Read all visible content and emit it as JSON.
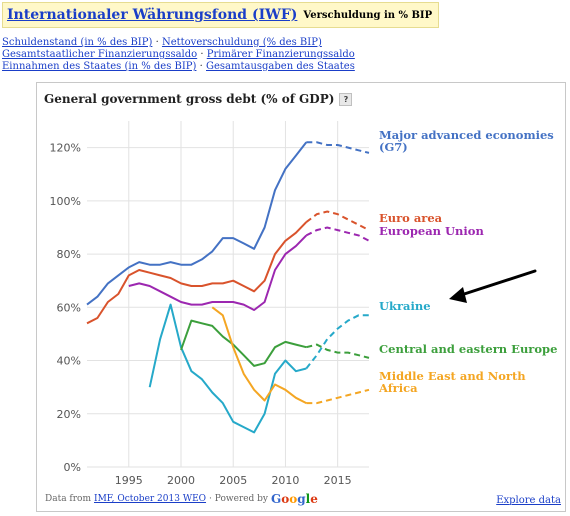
{
  "header": {
    "title": "Internationaler Währungsfond (IWF)",
    "subtitle": "Verschuldung in % BIP"
  },
  "links": {
    "row1": [
      "Schuldenstand (in % des BIP)",
      "Nettoverschuldung (% des BIP)"
    ],
    "row2": [
      "Gesamtstaatlicher Finanzierungssaldo",
      "Primärer Finanzierungssaldo"
    ],
    "row3": [
      "Einnahmen des Staates (in % des BIP)",
      "Gesamtausgaben des Staates"
    ],
    "separator": "·"
  },
  "chart_header": {
    "title": "General government gross debt (% of GDP)",
    "help": "?"
  },
  "footer": {
    "data_from": "Data from",
    "source_link": "IMF, October 2013 WEO",
    "powered_by": "· Powered by",
    "google_letters": [
      "G",
      "o",
      "o",
      "g",
      "l",
      "e"
    ],
    "explore": "Explore data"
  },
  "colors": {
    "g7": "#4472c4",
    "euro": "#d9532c",
    "eu": "#9c27b0",
    "ukraine": "#26a9c9",
    "cee": "#3c9f3c",
    "mena": "#f4a623",
    "grid": "#e2e2e2",
    "arrow": "#000000"
  },
  "chart_data": {
    "type": "line",
    "title": "General government gross debt (% of GDP)",
    "xlabel": "",
    "ylabel": "",
    "xlim": [
      1991,
      2018
    ],
    "ylim": [
      0,
      130
    ],
    "xticks": [
      1995,
      2000,
      2005,
      2010,
      2015
    ],
    "yticks": [
      0,
      20,
      40,
      60,
      80,
      100,
      120
    ],
    "ytick_labels": [
      "0%",
      "20%",
      "40%",
      "60%",
      "80%",
      "100%",
      "120%"
    ],
    "grid": true,
    "legend": "right, labels at line ends",
    "series": [
      {
        "name": "Major advanced economies (G7)",
        "label_lines": [
          "Major advanced economies",
          "(G7)"
        ],
        "color_key": "g7",
        "x": [
          1991,
          1992,
          1993,
          1994,
          1995,
          1996,
          1997,
          1998,
          1999,
          2000,
          2001,
          2002,
          2003,
          2004,
          2005,
          2006,
          2007,
          2008,
          2009,
          2010,
          2011,
          2012,
          2013,
          2014,
          2015,
          2016,
          2017,
          2018
        ],
        "y": [
          61,
          64,
          69,
          72,
          75,
          77,
          76,
          76,
          77,
          76,
          76,
          78,
          81,
          86,
          86,
          84,
          82,
          90,
          104,
          112,
          117,
          122,
          122,
          121,
          121,
          120,
          119,
          118
        ],
        "projection_from": 2012
      },
      {
        "name": "Euro area",
        "label_lines": [
          "Euro area"
        ],
        "color_key": "euro",
        "x": [
          1991,
          1992,
          1993,
          1994,
          1995,
          1996,
          1997,
          1998,
          1999,
          2000,
          2001,
          2002,
          2003,
          2004,
          2005,
          2006,
          2007,
          2008,
          2009,
          2010,
          2011,
          2012,
          2013,
          2014,
          2015,
          2016,
          2017,
          2018
        ],
        "y": [
          54,
          56,
          62,
          65,
          72,
          74,
          73,
          72,
          71,
          69,
          68,
          68,
          69,
          69,
          70,
          68,
          66,
          70,
          80,
          85,
          88,
          92,
          95,
          96,
          95,
          93,
          91,
          89
        ],
        "projection_from": 2012
      },
      {
        "name": "European Union",
        "label_lines": [
          "European Union"
        ],
        "color_key": "eu",
        "x": [
          1995,
          1996,
          1997,
          1998,
          1999,
          2000,
          2001,
          2002,
          2003,
          2004,
          2005,
          2006,
          2007,
          2008,
          2009,
          2010,
          2011,
          2012,
          2013,
          2014,
          2015,
          2016,
          2017,
          2018
        ],
        "y": [
          68,
          69,
          68,
          66,
          64,
          62,
          61,
          61,
          62,
          62,
          62,
          61,
          59,
          62,
          74,
          80,
          83,
          87,
          89,
          90,
          89,
          88,
          87,
          85
        ],
        "projection_from": 2012
      },
      {
        "name": "Ukraine",
        "label_lines": [
          "Ukraine"
        ],
        "color_key": "ukraine",
        "x": [
          1997,
          1998,
          1999,
          2000,
          2001,
          2002,
          2003,
          2004,
          2005,
          2006,
          2007,
          2008,
          2009,
          2010,
          2011,
          2012,
          2013,
          2014,
          2015,
          2016,
          2017,
          2018
        ],
        "y": [
          30,
          48,
          61,
          45,
          36,
          33,
          28,
          24,
          17,
          15,
          13,
          20,
          35,
          40,
          36,
          37,
          42,
          48,
          52,
          55,
          57,
          57
        ],
        "projection_from": 2012
      },
      {
        "name": "Central and eastern Europe",
        "label_lines": [
          "Central and eastern Europe"
        ],
        "color_key": "cee",
        "x": [
          2000,
          2001,
          2002,
          2003,
          2004,
          2005,
          2006,
          2007,
          2008,
          2009,
          2010,
          2011,
          2012,
          2013,
          2014,
          2015,
          2016,
          2017,
          2018
        ],
        "y": [
          44,
          55,
          54,
          53,
          49,
          46,
          42,
          38,
          39,
          45,
          47,
          46,
          45,
          46,
          44,
          43,
          43,
          42,
          41
        ],
        "projection_from": 2012
      },
      {
        "name": "Middle East and North Africa",
        "label_lines": [
          "Middle East and North",
          "Africa"
        ],
        "color_key": "mena",
        "x": [
          2003,
          2004,
          2005,
          2006,
          2007,
          2008,
          2009,
          2010,
          2011,
          2012,
          2013,
          2014,
          2015,
          2016,
          2017,
          2018
        ],
        "y": [
          60,
          57,
          45,
          35,
          29,
          25,
          31,
          29,
          26,
          24,
          24,
          25,
          26,
          27,
          28,
          29
        ],
        "projection_from": 2012
      }
    ]
  }
}
